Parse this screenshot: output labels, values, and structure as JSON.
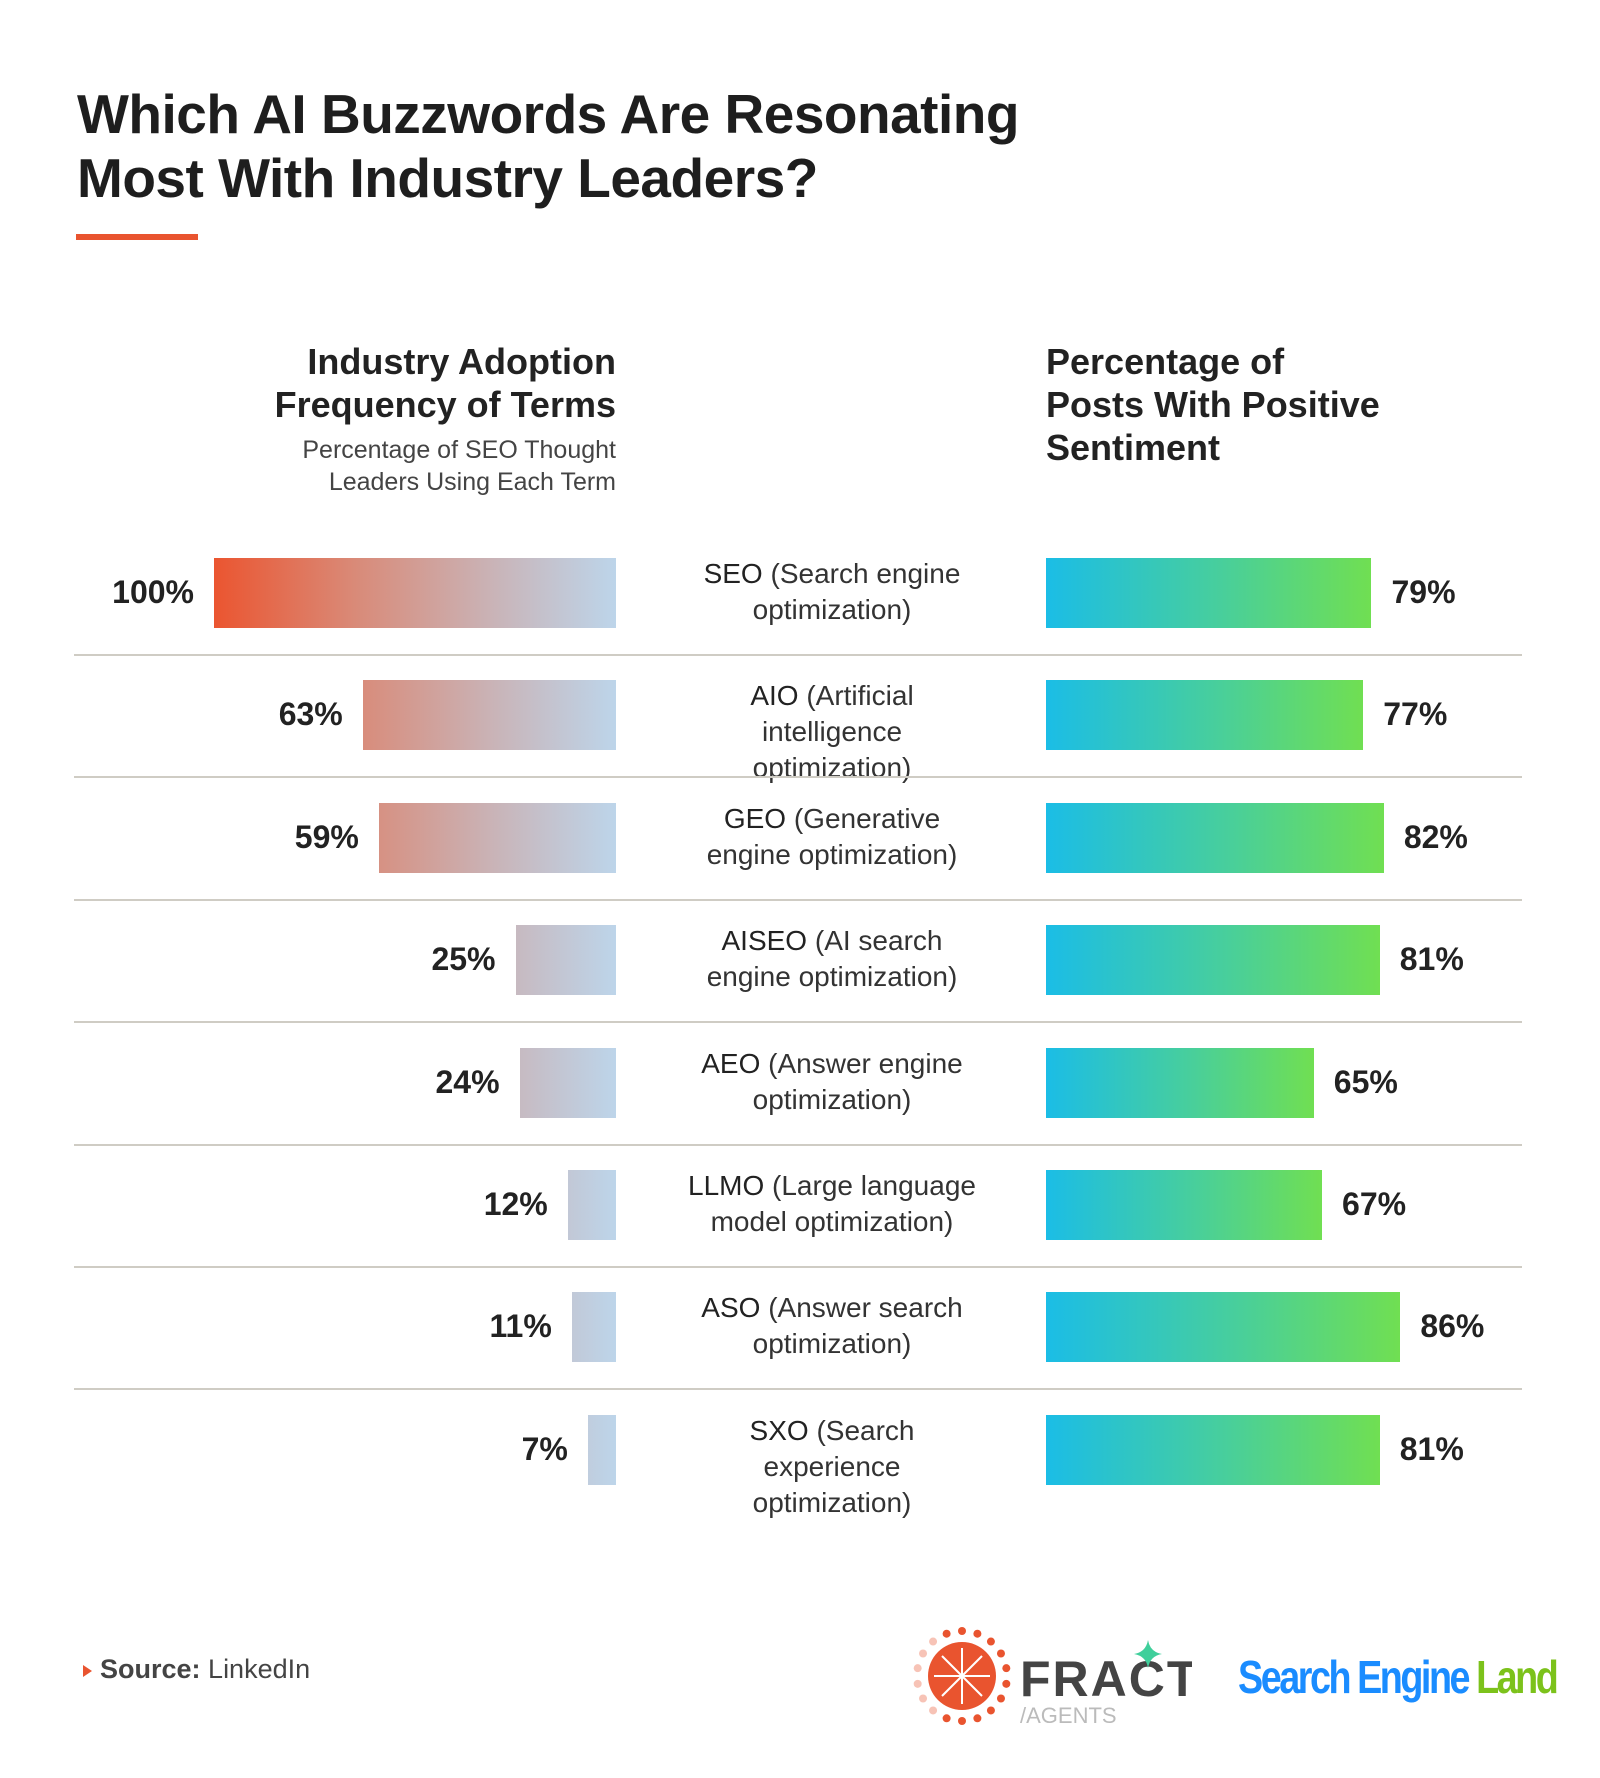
{
  "title": "Which AI Buzzwords Are Resonating Most With Industry Leaders?",
  "title_lines": [
    "Which AI Buzzwords Are Resonating",
    "Most With Industry Leaders?"
  ],
  "chart_data": {
    "type": "bar",
    "categories": [
      {
        "abbr": "SEO",
        "desc": "(Search engine optimization)"
      },
      {
        "abbr": "AIO",
        "desc": "(Artificial intelligence optimization)"
      },
      {
        "abbr": "GEO",
        "desc": "(Generative engine optimization)"
      },
      {
        "abbr": "AISEO",
        "desc": "(AI search engine optimization)"
      },
      {
        "abbr": "AEO",
        "desc": "(Answer engine optimization)"
      },
      {
        "abbr": "LLMO",
        "desc": "(Large language model optimization)"
      },
      {
        "abbr": "ASO",
        "desc": "(Answer search optimization)"
      },
      {
        "abbr": "SXO",
        "desc": "(Search experience optimization)"
      }
    ],
    "series": [
      {
        "name": "Industry Adoption Frequency of Terms",
        "subtitle": "Percentage of SEO Thought Leaders Using Each Term",
        "title_lines": [
          "Industry Adoption",
          "Frequency of Terms"
        ],
        "subtitle_lines": [
          "Percentage of SEO Thought",
          "Leaders Using Each Term"
        ],
        "values": [
          100,
          63,
          59,
          25,
          24,
          12,
          11,
          7
        ],
        "labels": [
          "100%",
          "63%",
          "59%",
          "25%",
          "24%",
          "12%",
          "11%",
          "7%"
        ],
        "color_from": "#eb5530",
        "color_to": "#bdd5ea"
      },
      {
        "name": "Percentage of Posts With Positive Sentiment",
        "title_lines": [
          "Percentage of",
          "Posts With Positive",
          "Sentiment"
        ],
        "values": [
          79,
          77,
          82,
          81,
          65,
          67,
          86,
          81
        ],
        "labels": [
          "79%",
          "77%",
          "82%",
          "81%",
          "65%",
          "67%",
          "86%",
          "81%"
        ],
        "color_from": "#1bbde6",
        "color_to": "#70df52"
      }
    ],
    "xlim": [
      0,
      100
    ]
  },
  "source": {
    "label": "Source:",
    "value": "LinkedIn"
  },
  "logos": {
    "fractl": "FRACTL",
    "fractl_sub": "/AGENTS",
    "sel_1": "Search Engine",
    "sel_2": "Land"
  },
  "colors": {
    "accent": "#e9542f",
    "sel_blue": "#1a8cff",
    "sel_green": "#7cc21b"
  }
}
